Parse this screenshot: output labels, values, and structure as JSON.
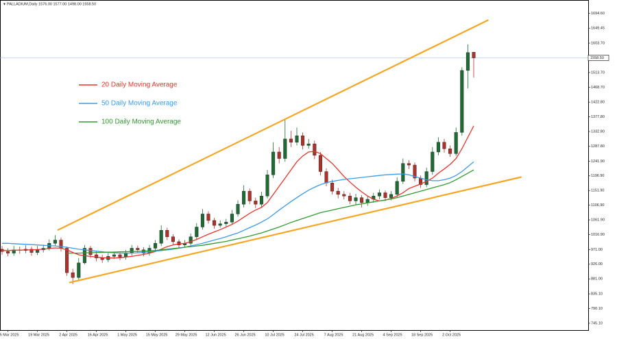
{
  "chart_data": {
    "type": "candlestick",
    "title": "PALLADIUM,Daily  1576.00 1577.00 1498.00 1558.50",
    "categories": [
      null,
      "5 Mar 2025",
      null,
      null,
      null,
      null,
      "19 Mar 2025",
      null,
      null,
      null,
      null,
      "2 Apr 2025",
      null,
      null,
      null,
      null,
      "16 Apr 2025",
      null,
      null,
      null,
      null,
      "1 May 2025",
      null,
      null,
      null,
      null,
      "15 May 2025",
      null,
      null,
      null,
      null,
      "29 May 2025",
      null,
      null,
      null,
      null,
      "12 Jun 2025",
      null,
      null,
      null,
      null,
      "26 Jun 2025",
      null,
      null,
      null,
      null,
      "10 Jul 2025",
      null,
      null,
      null,
      null,
      "24 Jul 2025",
      null,
      null,
      null,
      null,
      "7 Aug 2025",
      null,
      null,
      null,
      null,
      "21 Aug 2025",
      null,
      null,
      null,
      null,
      "4 Sep 2025",
      null,
      null,
      null,
      null,
      "18 Sep 2025",
      null,
      null,
      null,
      null,
      "2 Oct 2025",
      null,
      null,
      null,
      null
    ],
    "open": [
      972,
      965,
      960,
      970,
      968,
      972,
      962,
      970,
      975,
      990,
      1000,
      975,
      900,
      885,
      930,
      975,
      955,
      945,
      940,
      950,
      955,
      948,
      960,
      975,
      970,
      960,
      975,
      990,
      1030,
      1010,
      995,
      985,
      990,
      1010,
      1040,
      1080,
      1060,
      1045,
      1050,
      1055,
      1080,
      1110,
      1150,
      1120,
      1110,
      1135,
      1200,
      1270,
      1250,
      1310,
      1300,
      1320,
      1290,
      1295,
      1260,
      1210,
      1175,
      1150,
      1140,
      1135,
      1120,
      1130,
      1115,
      1125,
      1135,
      1145,
      1130,
      1140,
      1180,
      1235,
      1230,
      1190,
      1170,
      1210,
      1270,
      1300,
      1280,
      1265,
      1330,
      1520,
      1576
    ],
    "high": [
      982,
      975,
      982,
      980,
      984,
      980,
      982,
      986,
      1002,
      1015,
      1008,
      980,
      912,
      945,
      985,
      982,
      965,
      955,
      960,
      965,
      962,
      970,
      985,
      983,
      978,
      985,
      1000,
      1045,
      1038,
      1018,
      1002,
      1000,
      1020,
      1052,
      1095,
      1088,
      1068,
      1060,
      1065,
      1092,
      1122,
      1168,
      1158,
      1130,
      1148,
      1215,
      1300,
      1285,
      1371,
      1335,
      1345,
      1330,
      1310,
      1305,
      1270,
      1220,
      1185,
      1160,
      1150,
      1145,
      1142,
      1138,
      1135,
      1145,
      1155,
      1152,
      1150,
      1192,
      1250,
      1245,
      1238,
      1198,
      1222,
      1285,
      1315,
      1310,
      1290,
      1345,
      1530,
      1600,
      1577
    ],
    "low": [
      955,
      950,
      952,
      958,
      960,
      952,
      954,
      962,
      968,
      982,
      965,
      890,
      865,
      878,
      925,
      945,
      935,
      930,
      932,
      942,
      938,
      940,
      952,
      962,
      950,
      952,
      968,
      982,
      1000,
      985,
      975,
      978,
      982,
      1002,
      1032,
      1050,
      1035,
      1038,
      1042,
      1048,
      1072,
      1100,
      1110,
      1098,
      1102,
      1128,
      1190,
      1235,
      1240,
      1285,
      1290,
      1278,
      1280,
      1248,
      1198,
      1165,
      1140,
      1128,
      1125,
      1110,
      1108,
      1100,
      1105,
      1115,
      1125,
      1120,
      1122,
      1132,
      1172,
      1218,
      1180,
      1160,
      1162,
      1200,
      1260,
      1268,
      1255,
      1258,
      1320,
      1465,
      1498
    ],
    "close": [
      965,
      960,
      970,
      968,
      972,
      962,
      970,
      975,
      990,
      1000,
      975,
      900,
      885,
      930,
      975,
      955,
      945,
      940,
      950,
      955,
      948,
      960,
      975,
      970,
      960,
      975,
      990,
      1030,
      1010,
      995,
      985,
      990,
      1010,
      1040,
      1080,
      1060,
      1045,
      1050,
      1055,
      1080,
      1110,
      1150,
      1120,
      1110,
      1135,
      1200,
      1270,
      1250,
      1310,
      1300,
      1320,
      1290,
      1295,
      1260,
      1210,
      1175,
      1150,
      1140,
      1135,
      1120,
      1130,
      1115,
      1125,
      1135,
      1145,
      1130,
      1140,
      1180,
      1235,
      1230,
      1190,
      1170,
      1210,
      1270,
      1300,
      1280,
      1265,
      1330,
      1520,
      1575,
      1558.5
    ],
    "up_color": "#1e6b34",
    "down_color": "#b0302a",
    "series": [
      {
        "name": "20 Daily Moving Average",
        "color": "#e8322b",
        "values": [
          968,
          968,
          969,
          969,
          970,
          970,
          971,
          972,
          974,
          976,
          975,
          970,
          962,
          955,
          952,
          950,
          948,
          946,
          945,
          945,
          946,
          948,
          950,
          953,
          956,
          960,
          965,
          972,
          980,
          985,
          988,
          990,
          995,
          1002,
          1010,
          1018,
          1025,
          1032,
          1040,
          1048,
          1058,
          1070,
          1082,
          1092,
          1100,
          1115,
          1140,
          1165,
          1190,
          1215,
          1240,
          1258,
          1270,
          1272,
          1265,
          1250,
          1235,
          1215,
          1195,
          1178,
          1162,
          1148,
          1135,
          1125,
          1120,
          1122,
          1128,
          1135,
          1145,
          1158,
          1165,
          1172,
          1180,
          1190,
          1205,
          1218,
          1232,
          1250,
          1280,
          1315,
          1350
        ]
      },
      {
        "name": "50 Daily Moving Average",
        "color": "#3b9ae8",
        "values": [
          990,
          990,
          989,
          988,
          987,
          986,
          985,
          984,
          983,
          982,
          980,
          978,
          975,
          972,
          970,
          968,
          966,
          964,
          962,
          961,
          960,
          960,
          960,
          961,
          962,
          964,
          966,
          968,
          970,
          972,
          975,
          978,
          982,
          986,
          990,
          995,
          1000,
          1005,
          1010,
          1016,
          1022,
          1030,
          1038,
          1046,
          1055,
          1065,
          1078,
          1092,
          1105,
          1118,
          1130,
          1142,
          1153,
          1162,
          1170,
          1176,
          1180,
          1183,
          1186,
          1188,
          1190,
          1192,
          1194,
          1196,
          1198,
          1200,
          1201,
          1202,
          1203,
          1200,
          1195,
          1190,
          1185,
          1182,
          1182,
          1185,
          1190,
          1198,
          1210,
          1225,
          1240
        ]
      },
      {
        "name": "100 Daily Moving Average",
        "color": "#2e9a2e",
        "values": [
          null,
          null,
          null,
          null,
          null,
          null,
          null,
          null,
          null,
          null,
          null,
          960,
          960,
          960,
          961,
          961,
          962,
          962,
          963,
          963,
          964,
          964,
          965,
          965,
          966,
          967,
          968,
          970,
          972,
          974,
          976,
          978,
          980,
          982,
          984,
          987,
          990,
          993,
          996,
          1000,
          1004,
          1008,
          1012,
          1017,
          1022,
          1028,
          1034,
          1040,
          1047,
          1054,
          1060,
          1066,
          1072,
          1078,
          1084,
          1088,
          1092,
          1096,
          1100,
          1104,
          1108,
          1111,
          1114,
          1117,
          1120,
          1123,
          1126,
          1130,
          1135,
          1140,
          1145,
          1150,
          1155,
          1160,
          1165,
          1170,
          1176,
          1185,
          1195,
          1205,
          1215
        ]
      }
    ],
    "trendlines": [
      {
        "color": "#f5a623",
        "x": [
          9.5,
          82.4
        ],
        "y": [
          1031,
          1674
        ]
      },
      {
        "color": "#f5a623",
        "x": [
          11.5,
          88
        ],
        "y": [
          870,
          1193
        ]
      }
    ],
    "last_price": {
      "value": 1558.5,
      "label": "1558.50"
    },
    "ylim": [
      724,
      1736
    ],
    "yticks": [
      {
        "value": 1694.6,
        "label": "1694.60"
      },
      {
        "value": 1649.45,
        "label": "1649.45"
      },
      {
        "value": 1603.7,
        "label": "1603.70"
      },
      {
        "value": 1513.7,
        "label": "1513.70"
      },
      {
        "value": 1468.7,
        "label": "1468.70"
      },
      {
        "value": 1422.8,
        "label": "1422.80"
      },
      {
        "value": 1377.8,
        "label": "1377.80"
      },
      {
        "value": 1332.8,
        "label": "1332.80"
      },
      {
        "value": 1287.8,
        "label": "1287.80"
      },
      {
        "value": 1241.9,
        "label": "1241.90"
      },
      {
        "value": 1196.9,
        "label": "1196.90"
      },
      {
        "value": 1151.9,
        "label": "1151.90"
      },
      {
        "value": 1106.9,
        "label": "1106.90"
      },
      {
        "value": 1061.9,
        "label": "1061.90"
      },
      {
        "value": 1016.9,
        "label": "1016.90"
      },
      {
        "value": 971,
        "label": "971.00"
      },
      {
        "value": 926,
        "label": "926.00"
      },
      {
        "value": 881,
        "label": "881.00"
      },
      {
        "value": 835.1,
        "label": "835.10"
      },
      {
        "value": 790.1,
        "label": "790.10"
      },
      {
        "value": 745.1,
        "label": "745.10"
      }
    ],
    "grid": false
  }
}
